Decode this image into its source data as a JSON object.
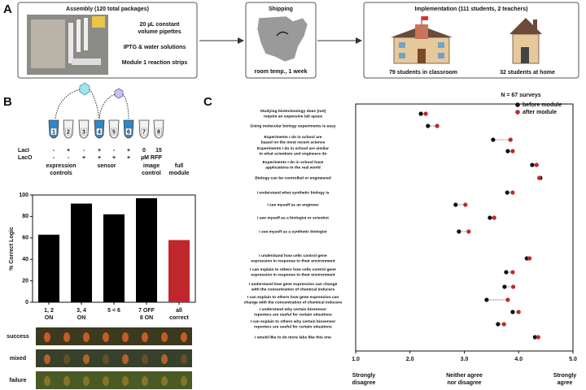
{
  "panel_a": {
    "label": "A",
    "assembly": {
      "title": "Assembly (120 total packages)",
      "items": [
        "20 µL constant",
        "volume pipettes",
        "IPTG & water solutions",
        "Module 1 reaction strips"
      ]
    },
    "shipping": {
      "title": "Shipping",
      "caption": "room temp., 1 week"
    },
    "implementation": {
      "title": "Implementation (111 students, 2 teachers)",
      "classroom": "79 students in classroom",
      "home": "32 students at home"
    }
  },
  "panel_b": {
    "label": "B",
    "tubes": [
      "1",
      "2",
      "3",
      "4",
      "5",
      "6",
      "7",
      "8"
    ],
    "laci_label": "LacI",
    "laco_label": "LacO",
    "laci": [
      "-",
      "+",
      "-",
      "+",
      "-",
      "+",
      "0",
      "15"
    ],
    "laco": [
      "-",
      "-",
      "+",
      "+",
      "+",
      "+"
    ],
    "rfp_unit": "µM RFP",
    "groups": [
      {
        "text": [
          "expression",
          "controls"
        ],
        "color": "#111111"
      },
      {
        "text": [
          "sensor"
        ],
        "color": "#111111"
      },
      {
        "text": [
          "image",
          "control"
        ],
        "color": "#111111"
      },
      {
        "text": [
          "full",
          "module"
        ],
        "color": "#c0272d"
      }
    ],
    "strips": [
      "success",
      "mixed",
      "failure"
    ]
  },
  "panel_c": {
    "label": "C"
  },
  "chart_data": [
    {
      "type": "bar",
      "ylabel": "% Correct Logic",
      "categories": [
        [
          "1, 2",
          "ON"
        ],
        [
          "3, 4",
          "ON"
        ],
        [
          "5 < 6"
        ],
        [
          "7 OFF",
          "8 ON"
        ],
        [
          "all",
          "correct"
        ]
      ],
      "values": [
        63,
        92,
        82,
        97,
        58
      ],
      "colors": [
        "#000000",
        "#000000",
        "#000000",
        "#000000",
        "#c0272d"
      ],
      "ylim": [
        0,
        100
      ],
      "yticks": [
        0,
        20,
        40,
        60,
        80,
        100
      ]
    },
    {
      "type": "dot",
      "note": "N = 67 surveys",
      "categories": [
        [
          "Studying biotechnology does (not)",
          "require an expensive lab space"
        ],
        [
          "Doing molecular biology experiments is easy"
        ],
        [
          "Experiments I do in school are",
          "based on the most recent science"
        ],
        [
          "Experiments I do in school are similar",
          "to what scientists and engineers do"
        ],
        [
          "Experiments I do in school have",
          "applications in the real world"
        ],
        [
          "Biology can be controlled or engineered"
        ],
        [
          "I understand what synthetic biology is"
        ],
        [
          "I see myself as an engineer"
        ],
        [
          "I see myself as a biologist or scientist"
        ],
        [
          "I see myself as a synthetic biologist"
        ],
        [
          "I understand how cells control gene",
          "expression in response to their environment"
        ],
        [
          "I can explain to others how cells control gene",
          "expression in response to their environment"
        ],
        [
          "I understand how gene expression can change",
          "with the concentration of chemical inducers"
        ],
        [
          "I can explain to others how gene expression can",
          "change with the concentration of chemical inducers"
        ],
        [
          "I understand why certain biosensor",
          "reporters are useful for certain situations"
        ],
        [
          "I can explain to others why certain biosensor",
          "reporters are useful for certain situations"
        ],
        [
          "I would like to do more labs like this one"
        ]
      ],
      "series": [
        {
          "name": "before module",
          "color": "#111111",
          "values": [
            2.2,
            2.33,
            3.53,
            3.8,
            4.25,
            4.4,
            3.79,
            2.84,
            3.47,
            2.9,
            4.15,
            3.77,
            3.74,
            3.41,
            3.89,
            3.62,
            4.3
          ]
        },
        {
          "name": "after module",
          "color": "#c0272d",
          "values": [
            2.29,
            2.5,
            3.85,
            3.89,
            4.33,
            4.38,
            3.89,
            3.02,
            3.55,
            3.08,
            4.2,
            3.89,
            3.9,
            3.8,
            4.0,
            3.73,
            4.36
          ]
        }
      ],
      "xlim": [
        1,
        5
      ],
      "xticks": [
        {
          "value": 1,
          "label": "1.0"
        },
        {
          "value": 2,
          "label": "2.0"
        },
        {
          "value": 3,
          "label": "3.0"
        },
        {
          "value": 4,
          "label": "4.0"
        },
        {
          "value": 5,
          "label": "5.0"
        }
      ],
      "xlabels": [
        [
          "Strongly",
          "disagree"
        ],
        [
          "Neither agree",
          "nor disagree"
        ],
        [
          "Strongly",
          "agree"
        ]
      ]
    }
  ]
}
